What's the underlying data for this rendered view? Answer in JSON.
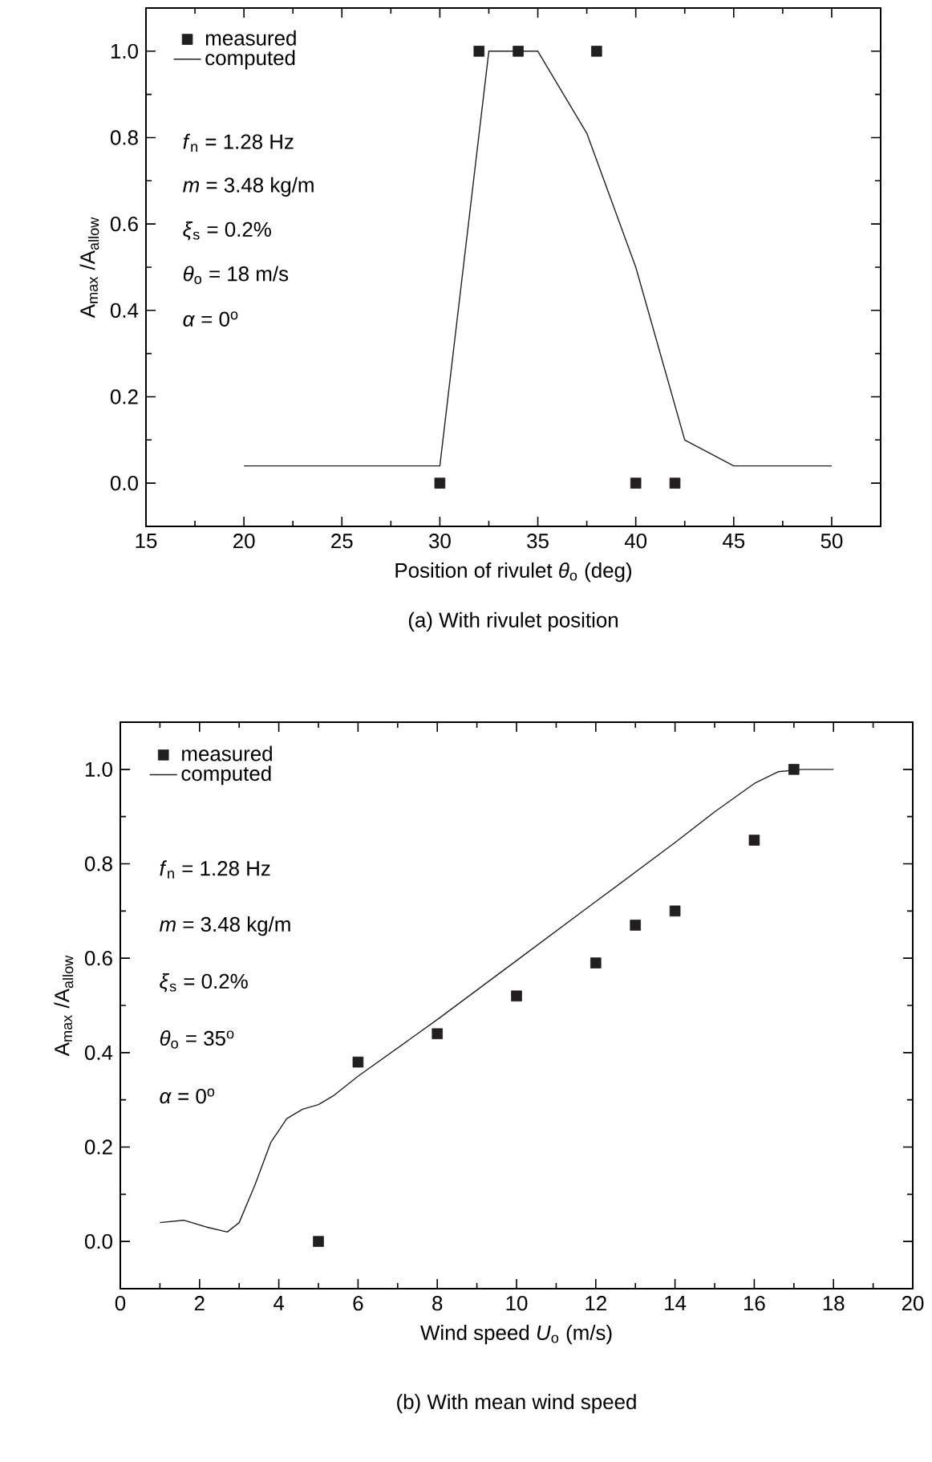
{
  "chart_data": [
    {
      "type": "scatter",
      "title": "(a) With rivulet position",
      "xlabel": "Position of rivulet *θ*$_{o}$ (deg)",
      "ylabel": "A$_{max}$ /A$_{allow}$",
      "xlim": [
        15,
        52.5
      ],
      "ylim": [
        -0.1,
        1.1
      ],
      "xticks": [
        15,
        20,
        25,
        30,
        35,
        40,
        45,
        50
      ],
      "yticks": [
        {
          "value": 0,
          "label": "0.0"
        },
        {
          "value": 0.2,
          "label": "0.2"
        },
        {
          "value": 0.4,
          "label": "0.4"
        },
        {
          "value": 0.6,
          "label": "0.6"
        },
        {
          "value": 0.8,
          "label": "0.8"
        },
        {
          "value": 1,
          "label": "1.0"
        }
      ],
      "legend": "top left",
      "series": [
        {
          "name": "measured",
          "marker": "square",
          "color": "#231f20",
          "x": [
            30,
            32,
            34,
            38,
            40,
            42
          ],
          "values": [
            0,
            1,
            1,
            1,
            0,
            0
          ]
        },
        {
          "name": "computed",
          "type": "line",
          "marker": "none",
          "line_style": "solid",
          "color": "#231f20",
          "x": [
            20,
            30,
            32.5,
            35,
            37.5,
            40,
            42.5,
            45,
            50
          ],
          "values": [
            0.04,
            0.04,
            1.0,
            1.0,
            0.81,
            0.5,
            0.1,
            0.04,
            0.04
          ]
        }
      ],
      "annotations": [
        "*f*$_{n}$ = 1.28 Hz",
        "*m* = 3.48 kg/m",
        "*ξ*$_{s}$ = 0.2%",
        "*θ*$_{o}$ = 18 m/s",
        "*α* = 0$^{o}$"
      ]
    },
    {
      "type": "scatter",
      "title": "(b) With mean wind speed",
      "xlabel": "Wind speed *U*$_{o}$ (m/s)",
      "ylabel": "A$_{max}$ /A$_{allow}$",
      "xlim": [
        0,
        20
      ],
      "ylim": [
        -0.1,
        1.1
      ],
      "xticks": [
        0,
        2,
        4,
        6,
        8,
        10,
        12,
        14,
        16,
        18,
        20
      ],
      "yticks": [
        {
          "value": 0,
          "label": "0.0"
        },
        {
          "value": 0.2,
          "label": "0.2"
        },
        {
          "value": 0.4,
          "label": "0.4"
        },
        {
          "value": 0.6,
          "label": "0.6"
        },
        {
          "value": 0.8,
          "label": "0.8"
        },
        {
          "value": 1,
          "label": "1.0"
        }
      ],
      "legend": "top left",
      "series": [
        {
          "name": "measured",
          "marker": "square",
          "color": "#231f20",
          "x": [
            5,
            6,
            8,
            10,
            12,
            13,
            14,
            16,
            17
          ],
          "values": [
            0,
            0.38,
            0.44,
            0.52,
            0.59,
            0.67,
            0.7,
            0.85,
            1.0
          ]
        },
        {
          "name": "computed",
          "type": "line",
          "marker": "none",
          "line_style": "solid",
          "color": "#231f20",
          "x": [
            1,
            1.6,
            2.2,
            2.7,
            3.0,
            3.4,
            3.8,
            4.2,
            4.6,
            5,
            5.4,
            6,
            8,
            10,
            12,
            14,
            15,
            16,
            16.6,
            17.2,
            18
          ],
          "values": [
            0.04,
            0.045,
            0.03,
            0.02,
            0.04,
            0.12,
            0.21,
            0.26,
            0.28,
            0.29,
            0.31,
            0.35,
            0.47,
            0.595,
            0.72,
            0.845,
            0.91,
            0.97,
            0.995,
            1.0,
            1.0
          ]
        }
      ],
      "annotations": [
        "*f*$_{n}$ = 1.28 Hz",
        "*m* = 3.48 kg/m",
        "*ξ*$_{s}$ = 0.2%",
        "*θ*$_{o}$ = 35$^{o}$",
        "*α* = 0$^{o}$"
      ]
    }
  ]
}
